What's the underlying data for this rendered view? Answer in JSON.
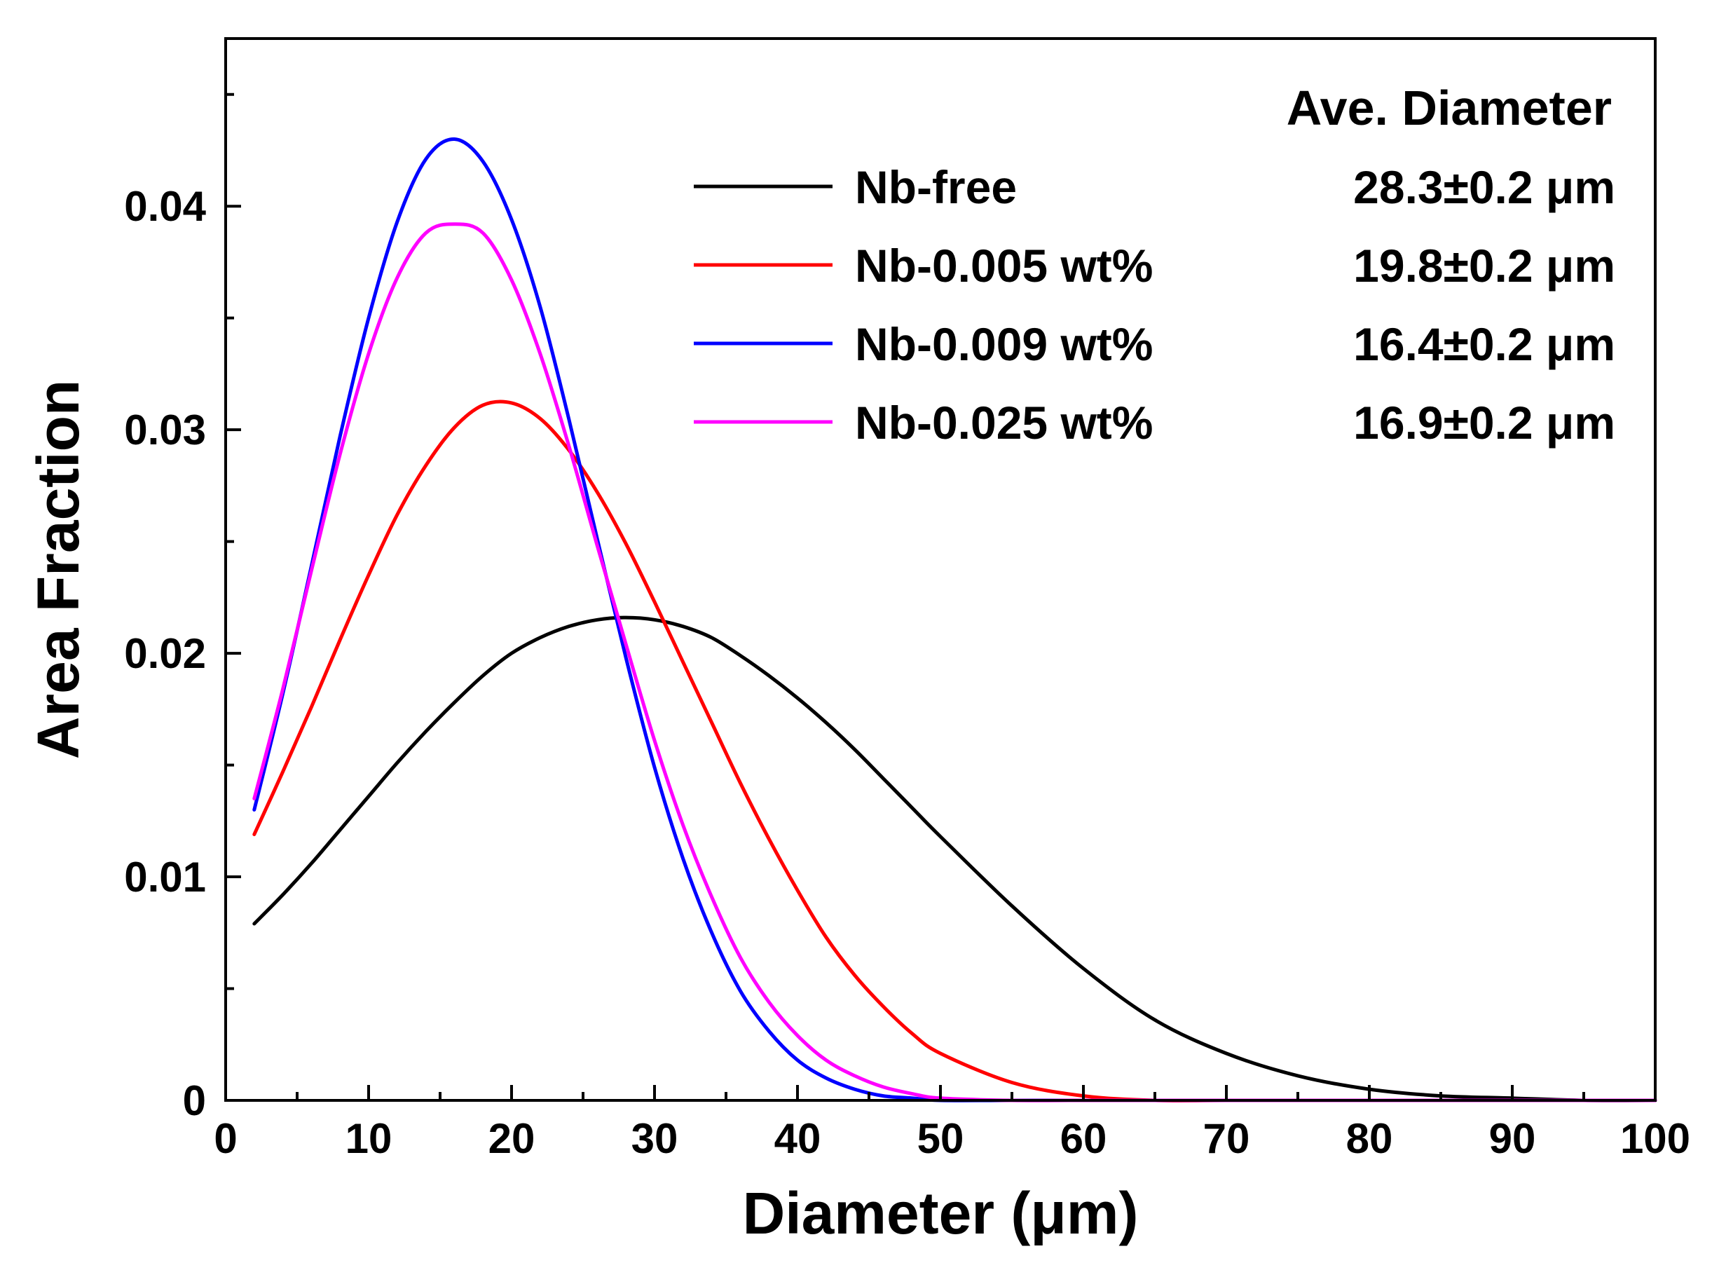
{
  "chart_data": {
    "type": "line",
    "title": "",
    "xlabel": "Diameter (μm)",
    "ylabel": "Area Fraction",
    "xlim": [
      0,
      100
    ],
    "ylim": [
      0,
      0.0475
    ],
    "x_ticks": [
      0,
      10,
      20,
      30,
      40,
      50,
      60,
      70,
      80,
      90,
      100
    ],
    "x_tick_labels": [
      "0",
      "10",
      "20",
      "30",
      "40",
      "50",
      "60",
      "70",
      "80",
      "90",
      "100"
    ],
    "y_ticks": [
      0,
      0.01,
      0.02,
      0.03,
      0.04
    ],
    "y_tick_labels": [
      "0",
      "0.01",
      "0.02",
      "0.03",
      "0.04"
    ],
    "legend_position": "top-right",
    "legend_header": "Ave. Diameter",
    "x": [
      2,
      4,
      6,
      8,
      10,
      12,
      14,
      16,
      18,
      20,
      22,
      24,
      26,
      28,
      30,
      32,
      34,
      36,
      38,
      40,
      42,
      44,
      46,
      48,
      50,
      55,
      60,
      65,
      70,
      75,
      80,
      85,
      90,
      95,
      100
    ],
    "series": [
      {
        "name": "Nb-free",
        "label": "Nb-free",
        "ave_diameter": "28.3±0.2 μm",
        "color": "#000000",
        "values": [
          0.0079,
          0.0092,
          0.0106,
          0.0121,
          0.0136,
          0.0151,
          0.0165,
          0.0178,
          0.019,
          0.02,
          0.0207,
          0.0212,
          0.0215,
          0.0216,
          0.0215,
          0.0212,
          0.0207,
          0.0199,
          0.019,
          0.018,
          0.0169,
          0.0157,
          0.0144,
          0.0131,
          0.0118,
          0.0087,
          0.0059,
          0.0036,
          0.0021,
          0.0011,
          0.0005,
          0.0002,
          0.0001,
          0.0,
          0.0
        ]
      },
      {
        "name": "Nb-0.005 wt%",
        "label": "Nb-0.005 wt%",
        "ave_diameter": "19.8±0.2 μm",
        "color": "#ff0000",
        "values": [
          0.0119,
          0.0147,
          0.0176,
          0.0206,
          0.0235,
          0.0262,
          0.0284,
          0.0301,
          0.0311,
          0.0312,
          0.0305,
          0.0291,
          0.0272,
          0.0249,
          0.0223,
          0.0196,
          0.0169,
          0.0142,
          0.0117,
          0.0094,
          0.0073,
          0.0056,
          0.0042,
          0.003,
          0.0021,
          0.0008,
          0.0002,
          0.0,
          0.0,
          0.0,
          0.0,
          0.0,
          0.0,
          0.0,
          0.0
        ]
      },
      {
        "name": "Nb-0.009 wt%",
        "label": "Nb-0.009 wt%",
        "ave_diameter": "16.4±0.2 μm",
        "color": "#0000ff",
        "values": [
          0.013,
          0.0182,
          0.0239,
          0.0297,
          0.035,
          0.0393,
          0.0421,
          0.043,
          0.042,
          0.0394,
          0.0355,
          0.0305,
          0.0251,
          0.0198,
          0.0149,
          0.0108,
          0.0075,
          0.0049,
          0.0031,
          0.0018,
          0.001,
          0.0005,
          0.0002,
          0.0001,
          0.0,
          0.0,
          0.0,
          0.0,
          0.0,
          0.0,
          0.0,
          0.0,
          0.0,
          0.0,
          0.0
        ]
      },
      {
        "name": "Nb-0.025 wt%",
        "label": "Nb-0.025 wt%",
        "ave_diameter": "16.9±0.2 μm",
        "color": "#ff00ff",
        "values": [
          0.0135,
          0.0184,
          0.0237,
          0.0289,
          0.0334,
          0.0368,
          0.0388,
          0.0392,
          0.0388,
          0.0367,
          0.0334,
          0.0293,
          0.0248,
          0.0204,
          0.0161,
          0.0123,
          0.0091,
          0.0064,
          0.0044,
          0.0029,
          0.0018,
          0.0011,
          0.0006,
          0.0003,
          0.0001,
          0.0,
          0.0,
          0.0,
          0.0,
          0.0,
          0.0,
          0.0,
          0.0,
          0.0,
          0.0
        ]
      }
    ]
  }
}
